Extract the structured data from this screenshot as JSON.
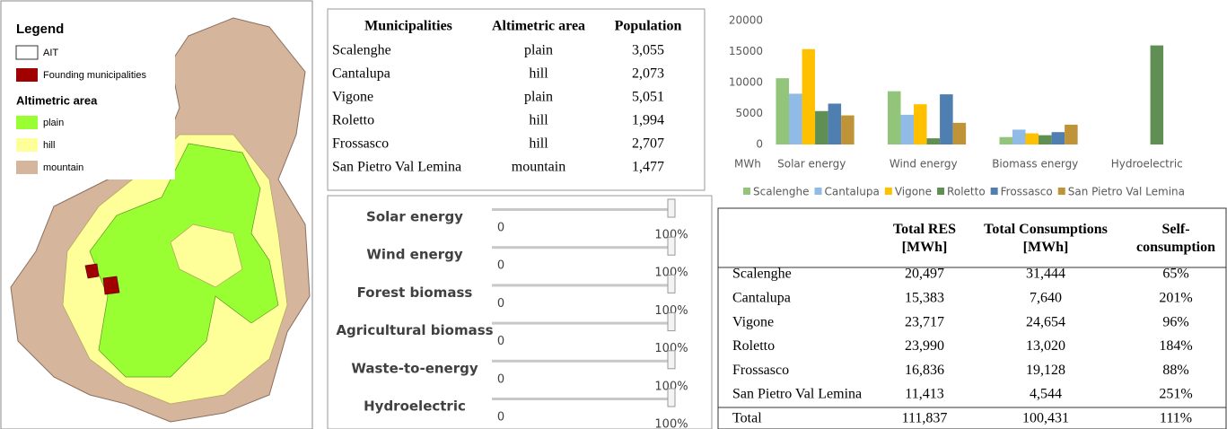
{
  "map": {
    "legend_title": "Legend",
    "items": [
      "AIT",
      "Founding municipalities"
    ],
    "altimetric_title": "Altimetric area",
    "areas": [
      "plain",
      "hill",
      "mountain"
    ]
  },
  "table": {
    "header": [
      "Municipalities",
      "Altimetric area",
      "Population"
    ],
    "rows": [
      [
        "Scalenghe",
        "plain",
        "3,055"
      ],
      [
        "Cantalupa",
        "hill",
        "2,073"
      ],
      [
        "Vigone",
        "plain",
        "5,051"
      ],
      [
        "Roletto",
        "hill",
        "1,994"
      ],
      [
        "Frossasco",
        "hill",
        "2,707"
      ],
      [
        "San Pietro Val Lemina",
        "mountain",
        "1,477"
      ]
    ]
  },
  "sliders": [
    {
      "label": "Solar energy",
      "min": "0",
      "max": "100%"
    },
    {
      "label": "Wind energy",
      "min": "0",
      "max": "100%"
    },
    {
      "label": "Forest biomass",
      "min": "0",
      "max": "100%"
    },
    {
      "label": "Agricultural biomass",
      "min": "0",
      "max": "100%"
    },
    {
      "label": "Waste-to-energy",
      "min": "0",
      "max": "100%"
    },
    {
      "label": "Hydroelectric",
      "min": "0",
      "max": "100%"
    }
  ],
  "chart_data": {
    "type": "bar",
    "y_unit": "MWh",
    "categories": [
      "Solar energy",
      "Wind energy",
      "Biomass energy",
      "Hydroelectric"
    ],
    "series": [
      {
        "name": "Scalenghe",
        "color": "#92c57a",
        "values": [
          10700,
          8600,
          1200,
          0
        ]
      },
      {
        "name": "Cantalupa",
        "color": "#8fbbe6",
        "values": [
          8200,
          4800,
          2400,
          0
        ]
      },
      {
        "name": "Vigone",
        "color": "#ffc000",
        "values": [
          15400,
          6500,
          1800,
          0
        ]
      },
      {
        "name": "Roletto",
        "color": "#5f8f52",
        "values": [
          5400,
          1000,
          1500,
          16000
        ]
      },
      {
        "name": "Frossasco",
        "color": "#4f7fb0",
        "values": [
          6600,
          8100,
          2000,
          0
        ]
      },
      {
        "name": "San Pietro Val Lemina",
        "color": "#bf9338",
        "values": [
          4700,
          3500,
          3200,
          0
        ]
      }
    ],
    "ylim": [
      0,
      20000
    ],
    "yticks": [
      0,
      5000,
      10000,
      15000,
      20000
    ],
    "legend": "bottom"
  },
  "table2": {
    "header": [
      "Total RES [MWh]",
      "Total Consumptions [MWh]",
      "Self-consumption"
    ],
    "rows": [
      [
        "Scalenghe",
        "20,497",
        "31,444",
        "65%"
      ],
      [
        "Cantalupa",
        "15,383",
        "7,640",
        "201%"
      ],
      [
        "Vigone",
        "23,717",
        "24,654",
        "96%"
      ],
      [
        "Roletto",
        "23,990",
        "13,020",
        "184%"
      ],
      [
        "Frossasco",
        "16,836",
        "19,128",
        "88%"
      ],
      [
        "San Pietro Val Lemina",
        "11,413",
        "4,544",
        "251%"
      ],
      [
        "Total",
        "111,837",
        "100,431",
        "111%"
      ]
    ]
  }
}
